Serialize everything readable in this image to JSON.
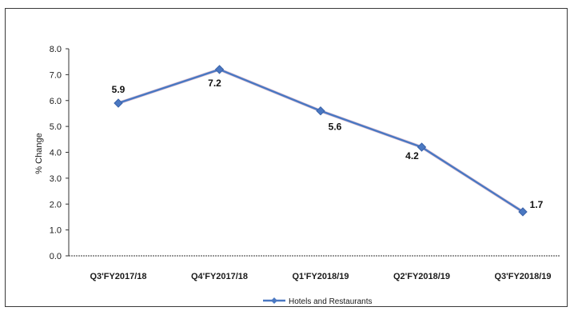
{
  "chart_data": {
    "type": "line",
    "categories": [
      "Q3'FY2017/18",
      "Q4'FY2017/18",
      "Q1'FY2018/19",
      "Q2'FY2018/19",
      "Q3'FY2018/19"
    ],
    "series": [
      {
        "name": "Hotels and Restaurants",
        "values": [
          5.9,
          7.2,
          5.6,
          4.2,
          1.7
        ],
        "color": "#4a78c2"
      }
    ],
    "data_labels": [
      "5.9",
      "7.2",
      "5.6",
      "4.2",
      "1.7"
    ],
    "ylabel": "% Change",
    "ylim": [
      0.0,
      8.0
    ],
    "yticks": [
      "0.0",
      "1.0",
      "2.0",
      "3.0",
      "4.0",
      "5.0",
      "6.0",
      "7.0",
      "8.0"
    ],
    "grid": false,
    "legend": "bottom"
  }
}
